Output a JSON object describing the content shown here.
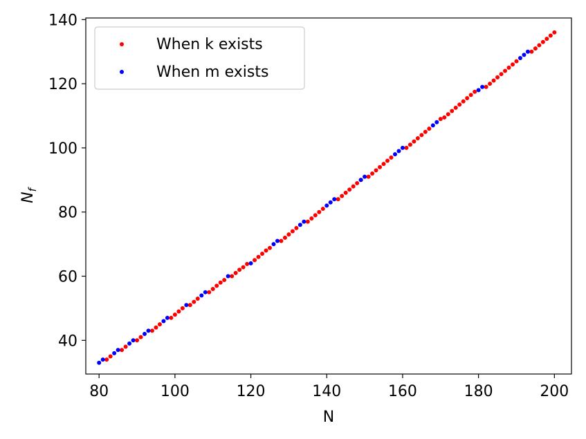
{
  "chart_data": {
    "type": "scatter",
    "title": "",
    "xlabel": "N",
    "ylabel_main": "N",
    "ylabel_sub": "f",
    "xlim": [
      76.5,
      204.5
    ],
    "ylim": [
      29.5,
      140.5
    ],
    "xticks": [
      80,
      100,
      120,
      140,
      160,
      180,
      200
    ],
    "yticks": [
      40,
      60,
      80,
      100,
      120,
      140
    ],
    "grid": false,
    "legend_position": "upper-left",
    "series": [
      {
        "name": "When k exists",
        "color": "#ff0000",
        "x": [
          82,
          83,
          86,
          87,
          90,
          91,
          94,
          95,
          96,
          99,
          100,
          101,
          102,
          104,
          105,
          106,
          109,
          110,
          111,
          112,
          113,
          115,
          116,
          117,
          118,
          119,
          121,
          122,
          123,
          124,
          125,
          128,
          129,
          130,
          131,
          132,
          135,
          136,
          137,
          138,
          139,
          143,
          144,
          145,
          146,
          147,
          148,
          149,
          151,
          152,
          153,
          154,
          155,
          156,
          157,
          161,
          162,
          163,
          164,
          165,
          166,
          167,
          170,
          171,
          172,
          173,
          174,
          175,
          176,
          177,
          178,
          179,
          182,
          183,
          184,
          185,
          186,
          187,
          188,
          189,
          190,
          194,
          195,
          196,
          197,
          198,
          199,
          200
        ],
        "y": [
          34,
          35,
          37,
          38,
          40,
          41,
          43,
          44,
          45,
          47,
          48,
          49,
          50,
          51,
          52,
          53,
          55,
          56,
          57,
          58,
          58.8,
          60,
          61,
          62,
          62.8,
          63.8,
          65,
          66,
          67,
          68,
          68.8,
          71,
          72,
          73,
          74,
          75,
          77,
          78,
          79,
          80,
          81,
          84,
          85,
          86,
          87,
          88,
          89,
          90,
          91,
          92,
          93,
          94,
          95,
          96,
          97,
          100,
          101,
          102,
          103,
          104,
          105,
          106,
          109,
          109.5,
          110.5,
          111.5,
          112.5,
          113.5,
          114.5,
          115.5,
          116.5,
          117.5,
          119,
          120,
          121,
          122,
          123,
          124,
          125,
          126,
          127,
          130,
          131,
          132,
          133,
          134,
          135,
          136
        ]
      },
      {
        "name": "When m exists",
        "color": "#0000ff",
        "x": [
          80,
          81,
          84,
          85,
          88,
          89,
          92,
          93,
          97,
          98,
          103,
          107,
          108,
          114,
          120,
          126,
          127,
          133,
          134,
          140,
          141,
          142,
          149,
          150,
          158,
          159,
          160,
          168,
          169,
          180,
          181,
          191,
          192,
          193
        ],
        "y": [
          33,
          34,
          36,
          37,
          39,
          40,
          42,
          43,
          46,
          47,
          51,
          54,
          55,
          60,
          64,
          70,
          71,
          76,
          77,
          82,
          83,
          84,
          90,
          91,
          98,
          99,
          100,
          107,
          108,
          118,
          119,
          128,
          129,
          130
        ]
      }
    ]
  }
}
